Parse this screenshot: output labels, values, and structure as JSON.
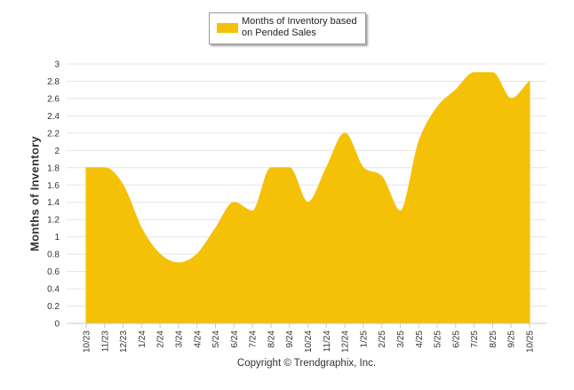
{
  "chart_data": {
    "type": "area",
    "title": "",
    "xlabel": "",
    "ylabel": "Months of Inventory",
    "ylim": [
      0,
      3
    ],
    "grid": true,
    "legend_position": "top-center",
    "y_ticks": [
      "0",
      "0.2",
      "0.4",
      "0.6",
      "0.8",
      "1",
      "1.2",
      "1.4",
      "1.6",
      "1.8",
      "2",
      "2.2",
      "2.4",
      "2.6",
      "2.8",
      "3"
    ],
    "categories": [
      "10/23",
      "11/23",
      "12/23",
      "1/24",
      "2/24",
      "3/24",
      "4/24",
      "5/24",
      "6/24",
      "7/24",
      "8/24",
      "9/24",
      "10/24",
      "11/24",
      "12/24",
      "1/25",
      "2/25",
      "3/25",
      "4/25",
      "5/25",
      "6/25",
      "7/25",
      "8/25",
      "9/25",
      "10/25"
    ],
    "series": [
      {
        "name": "Months of Inventory based on Pended Sales",
        "color": "#f5c107",
        "values": [
          1.8,
          1.8,
          1.6,
          1.1,
          0.8,
          0.7,
          0.8,
          1.1,
          1.4,
          1.3,
          1.8,
          1.8,
          1.4,
          1.8,
          2.2,
          1.8,
          1.7,
          1.3,
          2.1,
          2.5,
          2.7,
          2.9,
          2.9,
          2.6,
          2.8
        ]
      }
    ]
  },
  "legend": {
    "line1": "Months of Inventory based",
    "line2": "on Pended Sales"
  },
  "footer": {
    "copyright": "Copyright © Trendgraphix, Inc."
  }
}
